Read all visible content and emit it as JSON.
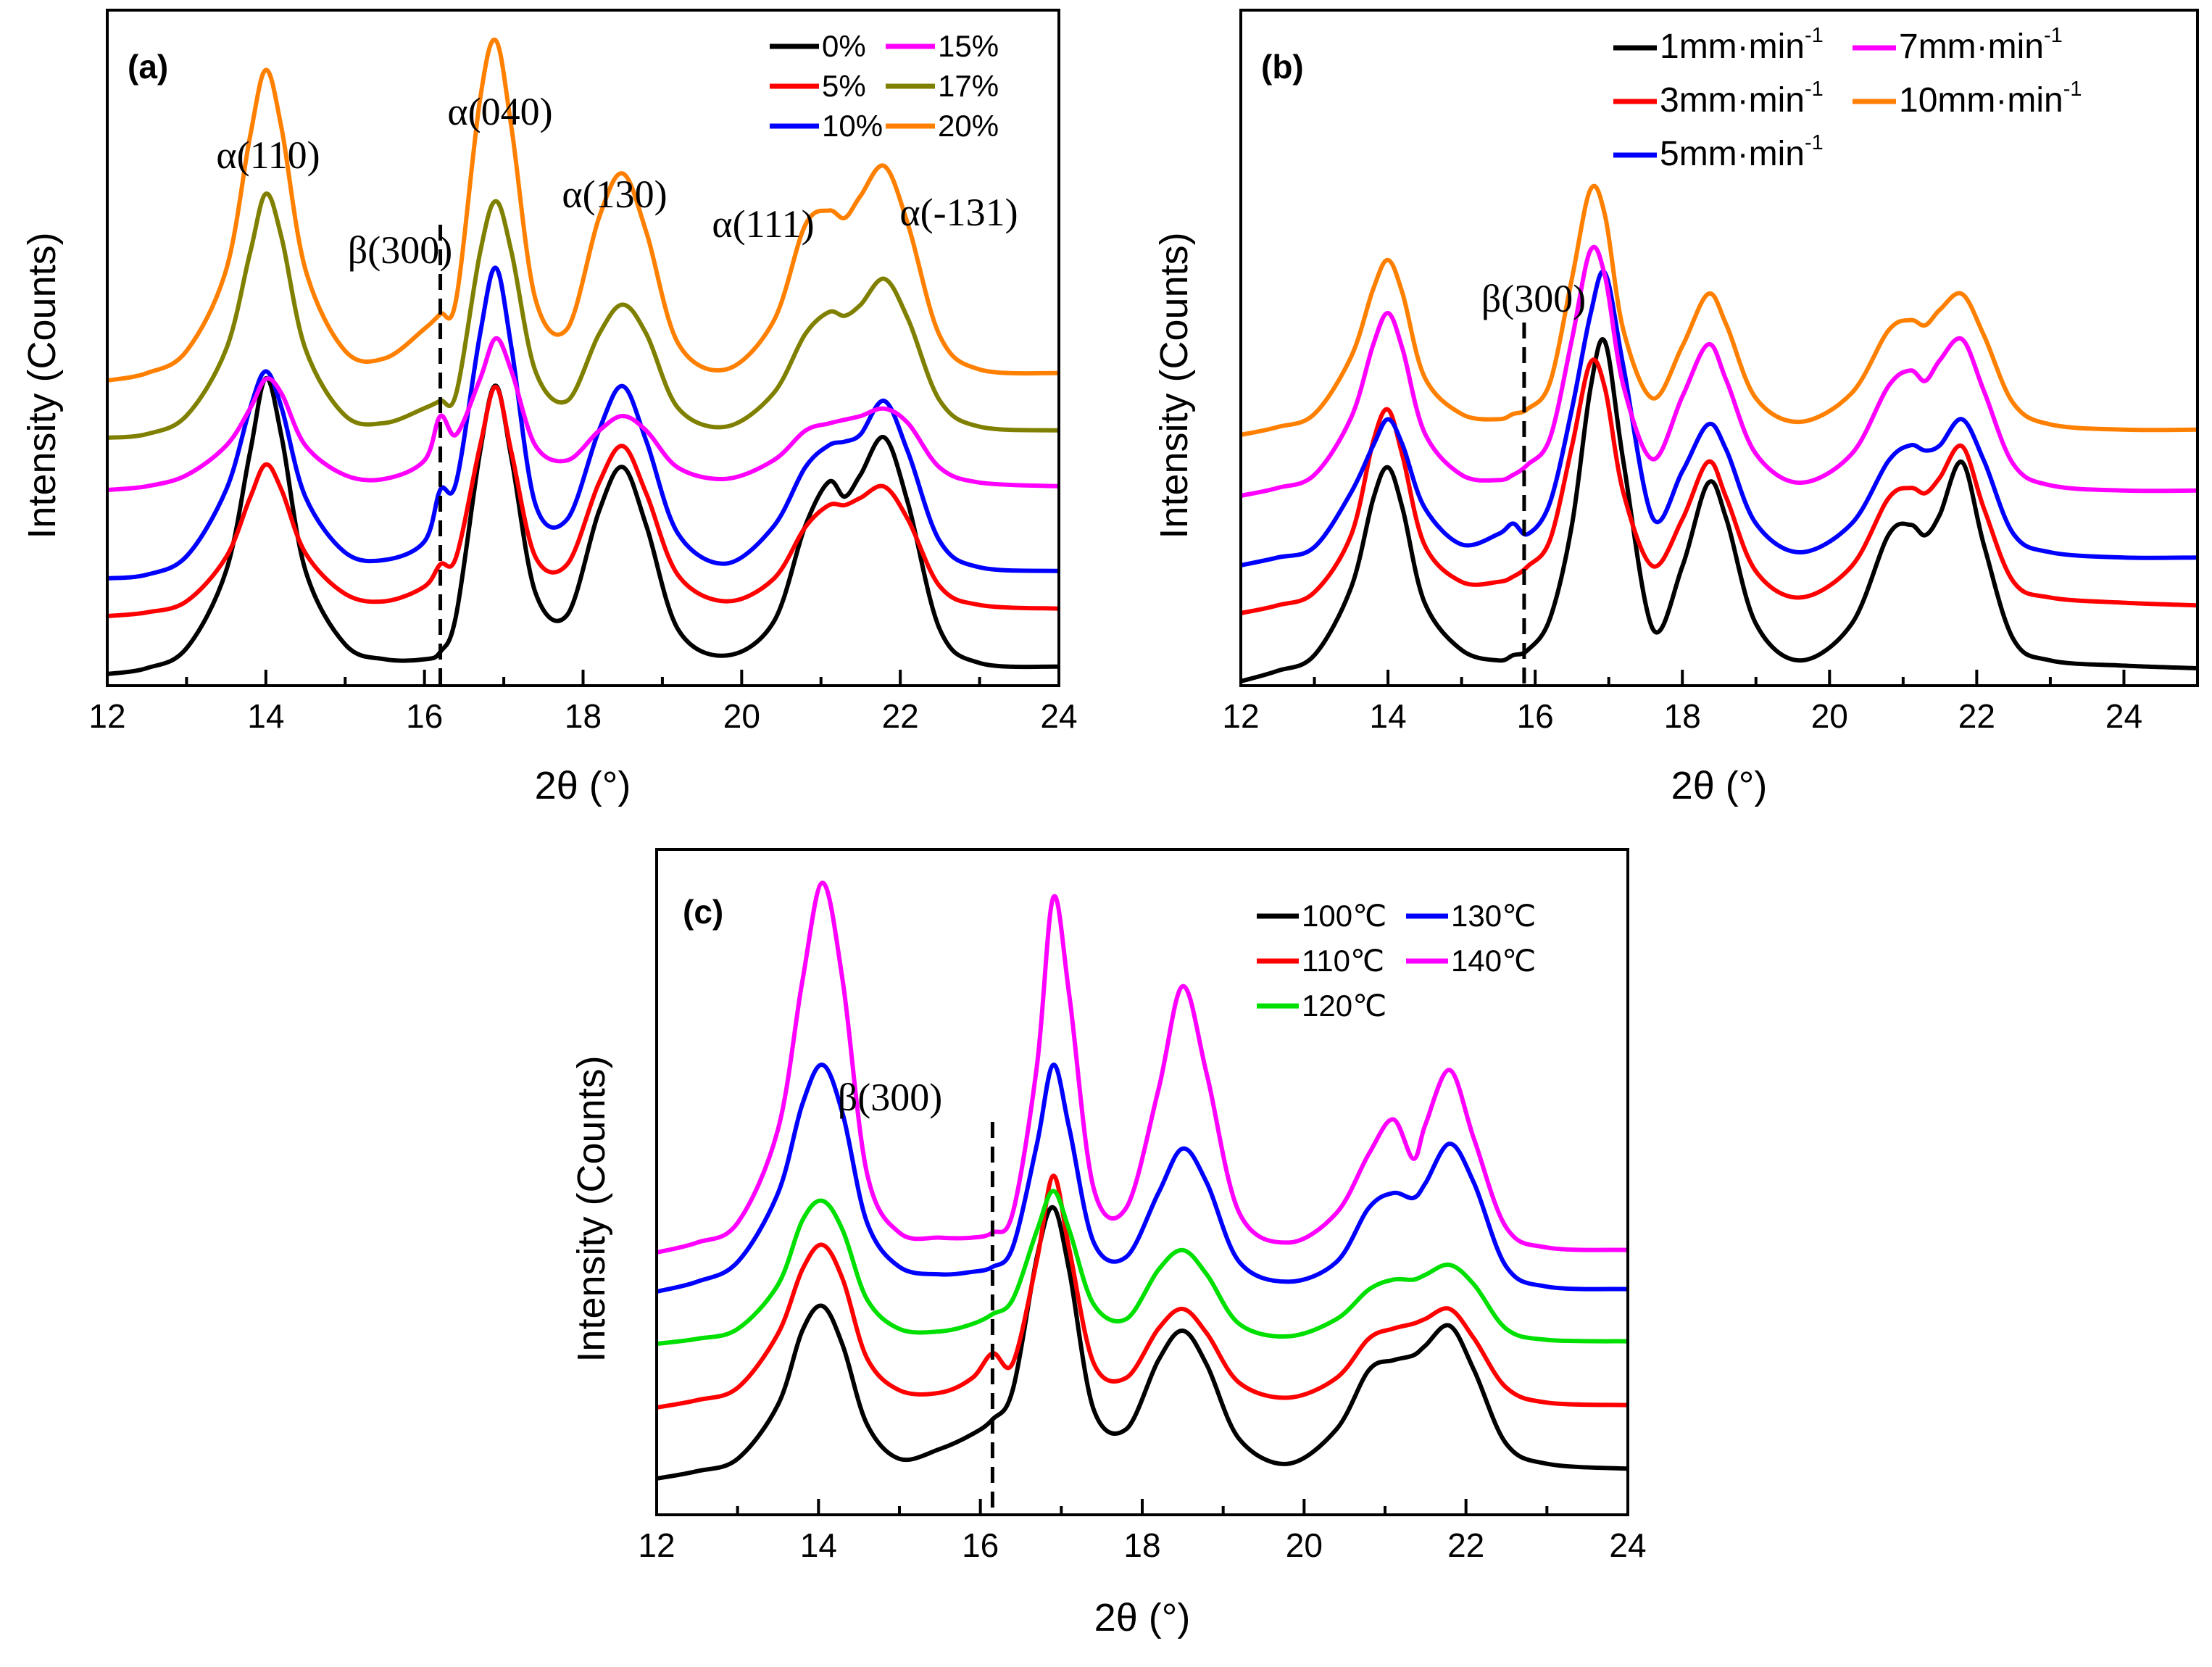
{
  "chart_data": [
    {
      "id": "a",
      "type": "line",
      "panel_label": "(a)",
      "xlabel": "2θ (°)",
      "ylabel": "Intensity (Counts)",
      "xlim": [
        12,
        24
      ],
      "x_ticks": [
        12,
        14,
        16,
        18,
        20,
        22,
        24
      ],
      "x_tick_labels": [
        "12",
        "14",
        "16",
        "18",
        "20",
        "22",
        "24"
      ],
      "legend_title": "",
      "legend": [
        {
          "label": "0%",
          "color": "#000000"
        },
        {
          "label": "15%",
          "color": "#ff00ff"
        },
        {
          "label": "5%",
          "color": "#ff0000"
        },
        {
          "label": "17%",
          "color": "#808000"
        },
        {
          "label": "10%",
          "color": "#0000ff"
        },
        {
          "label": "20%",
          "color": "#ff8000"
        }
      ],
      "peak_labels": [
        {
          "text": "α(110)",
          "x": 14.0
        },
        {
          "text": "α(040)",
          "x": 16.9
        },
        {
          "text": "α(130)",
          "x": 18.5
        },
        {
          "text": "α(111)",
          "x": 21.05
        },
        {
          "text": "α(-131)",
          "x": 21.9
        },
        {
          "text": "β(300)",
          "x": 16.2
        }
      ],
      "dashed_x": 16.2,
      "x": [
        12,
        12.5,
        13,
        13.5,
        13.8,
        14.0,
        14.2,
        14.5,
        15.0,
        15.5,
        16.0,
        16.2,
        16.4,
        16.7,
        16.9,
        17.1,
        17.4,
        17.8,
        18.2,
        18.5,
        18.8,
        19.2,
        19.8,
        20.4,
        20.8,
        21.1,
        21.3,
        21.5,
        21.8,
        22.1,
        22.5,
        23.0,
        24.0
      ],
      "series": [
        {
          "name": "0%",
          "color": "#000000",
          "values": [
            0,
            8,
            35,
            140,
            300,
            400,
            320,
            140,
            40,
            20,
            20,
            30,
            80,
            300,
            390,
            290,
            110,
            80,
            220,
            280,
            200,
            60,
            25,
            70,
            200,
            260,
            240,
            270,
            320,
            230,
            60,
            15,
            10
          ]
        },
        {
          "name": "5%",
          "color": "#ff0000",
          "values": [
            0,
            5,
            20,
            80,
            160,
            205,
            170,
            85,
            30,
            20,
            40,
            70,
            80,
            230,
            310,
            220,
            80,
            70,
            180,
            230,
            165,
            55,
            20,
            50,
            120,
            150,
            150,
            160,
            175,
            130,
            40,
            15,
            10
          ]
        },
        {
          "name": "10%",
          "color": "#0000ff",
          "values": [
            0,
            5,
            30,
            120,
            230,
            280,
            230,
            110,
            35,
            25,
            50,
            120,
            130,
            330,
            420,
            310,
            100,
            80,
            200,
            260,
            185,
            60,
            20,
            70,
            150,
            180,
            185,
            195,
            240,
            170,
            50,
            15,
            10
          ]
        },
        {
          "name": "15%",
          "color": "#ff00ff",
          "values": [
            0,
            5,
            20,
            60,
            110,
            150,
            130,
            60,
            20,
            15,
            40,
            100,
            75,
            150,
            205,
            160,
            60,
            40,
            80,
            100,
            80,
            30,
            15,
            40,
            80,
            90,
            95,
            100,
            110,
            90,
            30,
            10,
            5
          ]
        },
        {
          "name": "17%",
          "color": "#808000",
          "values": [
            0,
            5,
            30,
            120,
            250,
            330,
            270,
            120,
            30,
            20,
            40,
            50,
            60,
            250,
            320,
            250,
            90,
            50,
            140,
            180,
            140,
            40,
            15,
            60,
            140,
            170,
            165,
            180,
            215,
            160,
            50,
            15,
            10
          ]
        },
        {
          "name": "20%",
          "color": "#ff8000",
          "values": [
            0,
            10,
            40,
            150,
            330,
            420,
            340,
            150,
            40,
            30,
            70,
            90,
            110,
            380,
            460,
            340,
            110,
            70,
            220,
            280,
            200,
            50,
            15,
            80,
            210,
            230,
            220,
            250,
            290,
            210,
            60,
            15,
            10
          ]
        }
      ]
    },
    {
      "id": "b",
      "type": "line",
      "panel_label": "(b)",
      "xlabel": "2θ (°)",
      "ylabel": "Intensity (Counts)",
      "xlim": [
        12,
        25
      ],
      "x_ticks": [
        12,
        14,
        16,
        18,
        20,
        22,
        24
      ],
      "x_tick_labels": [
        "12",
        "14",
        "16",
        "18",
        "20",
        "22",
        "24"
      ],
      "legend_title": "",
      "legend": [
        {
          "label": "1mm·min",
          "sup": "-1",
          "color": "#000000"
        },
        {
          "label": "7mm·min",
          "sup": "-1",
          "color": "#ff00ff"
        },
        {
          "label": "3mm·min",
          "sup": "-1",
          "color": "#ff0000"
        },
        {
          "label": "10mm·min",
          "sup": "-1",
          "color": "#ff8000"
        },
        {
          "label": "5mm·min",
          "sup": "-1",
          "color": "#0000ff"
        }
      ],
      "peak_labels": [
        {
          "text": "β(300)",
          "x": 15.85
        }
      ],
      "dashed_x": 15.85,
      "x": [
        12,
        12.5,
        13,
        13.5,
        13.8,
        14.0,
        14.2,
        14.5,
        15.0,
        15.5,
        15.7,
        15.9,
        16.2,
        16.5,
        16.75,
        16.95,
        17.2,
        17.6,
        18.0,
        18.35,
        18.6,
        19.0,
        19.6,
        20.3,
        20.8,
        21.1,
        21.3,
        21.5,
        21.8,
        22.1,
        22.5,
        23.0,
        24.0,
        25.0
      ],
      "series": [
        {
          "name": "1mm·min-1",
          "color": "#000000",
          "values": [
            0,
            20,
            50,
            180,
            350,
            410,
            330,
            150,
            60,
            40,
            50,
            60,
            120,
            300,
            560,
            650,
            420,
            100,
            220,
            380,
            310,
            110,
            40,
            110,
            280,
            300,
            280,
            320,
            420,
            260,
            80,
            40,
            30,
            25
          ]
        },
        {
          "name": "3mm·min-1",
          "color": "#ff0000",
          "values": [
            0,
            15,
            40,
            150,
            330,
            390,
            300,
            130,
            60,
            60,
            70,
            90,
            140,
            320,
            480,
            430,
            230,
            90,
            180,
            290,
            220,
            80,
            30,
            90,
            220,
            240,
            230,
            260,
            320,
            200,
            60,
            30,
            20,
            15
          ]
        },
        {
          "name": "5mm·min-1",
          "color": "#0000ff",
          "values": [
            0,
            15,
            35,
            140,
            230,
            280,
            230,
            110,
            40,
            60,
            80,
            60,
            120,
            300,
            480,
            560,
            380,
            90,
            180,
            270,
            220,
            80,
            25,
            80,
            200,
            230,
            220,
            230,
            280,
            200,
            60,
            25,
            15,
            15
          ]
        },
        {
          "name": "7mm·min-1",
          "color": "#ff00ff",
          "values": [
            0,
            15,
            40,
            150,
            290,
            350,
            280,
            120,
            40,
            30,
            40,
            60,
            110,
            300,
            470,
            420,
            210,
            70,
            190,
            290,
            220,
            80,
            25,
            80,
            210,
            240,
            220,
            260,
            300,
            200,
            60,
            20,
            10,
            10
          ]
        },
        {
          "name": "10mm·min-1",
          "color": "#ff8000",
          "values": [
            0,
            15,
            40,
            150,
            280,
            335,
            270,
            110,
            40,
            30,
            40,
            50,
            100,
            300,
            470,
            420,
            200,
            70,
            170,
            270,
            210,
            70,
            25,
            80,
            200,
            220,
            210,
            240,
            270,
            190,
            60,
            20,
            10,
            10
          ]
        }
      ]
    },
    {
      "id": "c",
      "type": "line",
      "panel_label": "(c)",
      "xlabel": "2θ (°)",
      "ylabel": "Intensity (Counts)",
      "xlim": [
        12,
        24
      ],
      "x_ticks": [
        12,
        14,
        16,
        18,
        20,
        22,
        24
      ],
      "x_tick_labels": [
        "12",
        "14",
        "16",
        "18",
        "20",
        "22",
        "24"
      ],
      "legend_title": "",
      "legend": [
        {
          "label": "100℃",
          "color": "#000000"
        },
        {
          "label": "130℃",
          "color": "#0000ff"
        },
        {
          "label": "110℃",
          "color": "#ff0000"
        },
        {
          "label": "140℃",
          "color": "#ff00ff"
        },
        {
          "label": "120℃",
          "color": "#00e000"
        }
      ],
      "peak_labels": [
        {
          "text": "β(300)",
          "x": 16.15
        }
      ],
      "dashed_x": 16.15,
      "x": [
        12,
        12.5,
        13,
        13.5,
        13.8,
        14.05,
        14.3,
        14.6,
        15.0,
        15.5,
        15.9,
        16.15,
        16.4,
        16.7,
        16.9,
        17.1,
        17.4,
        17.8,
        18.2,
        18.5,
        18.8,
        19.2,
        19.8,
        20.4,
        20.8,
        21.1,
        21.35,
        21.5,
        21.8,
        22.1,
        22.5,
        23.0,
        24.0
      ],
      "series": [
        {
          "name": "100℃",
          "color": "#000000",
          "values": [
            0,
            15,
            40,
            150,
            300,
            350,
            270,
            110,
            40,
            60,
            90,
            120,
            180,
            450,
            550,
            420,
            140,
            100,
            240,
            300,
            230,
            80,
            30,
            100,
            220,
            240,
            250,
            270,
            310,
            220,
            70,
            30,
            20
          ]
        },
        {
          "name": "110℃",
          "color": "#ff0000",
          "values": [
            0,
            15,
            40,
            150,
            280,
            330,
            260,
            100,
            35,
            30,
            60,
            110,
            90,
            300,
            470,
            320,
            90,
            60,
            160,
            200,
            150,
            50,
            20,
            60,
            140,
            160,
            170,
            180,
            200,
            140,
            40,
            10,
            5
          ]
        },
        {
          "name": "120℃",
          "color": "#00e000",
          "values": [
            0,
            10,
            30,
            120,
            250,
            290,
            230,
            90,
            30,
            25,
            40,
            60,
            90,
            230,
            310,
            230,
            80,
            50,
            150,
            190,
            140,
            40,
            15,
            50,
            110,
            130,
            130,
            140,
            160,
            120,
            30,
            8,
            5
          ]
        },
        {
          "name": "130℃",
          "color": "#0000ff",
          "values": [
            0,
            20,
            60,
            200,
            380,
            460,
            360,
            140,
            50,
            35,
            40,
            50,
            90,
            300,
            460,
            330,
            100,
            70,
            200,
            290,
            220,
            60,
            20,
            60,
            170,
            200,
            190,
            220,
            300,
            220,
            50,
            10,
            5
          ]
        },
        {
          "name": "140℃",
          "color": "#ff00ff",
          "values": [
            0,
            20,
            60,
            250,
            550,
            750,
            550,
            160,
            40,
            30,
            30,
            40,
            80,
            380,
            720,
            520,
            130,
            90,
            330,
            540,
            360,
            80,
            20,
            80,
            200,
            270,
            190,
            260,
            370,
            230,
            50,
            10,
            5
          ]
        }
      ]
    }
  ]
}
